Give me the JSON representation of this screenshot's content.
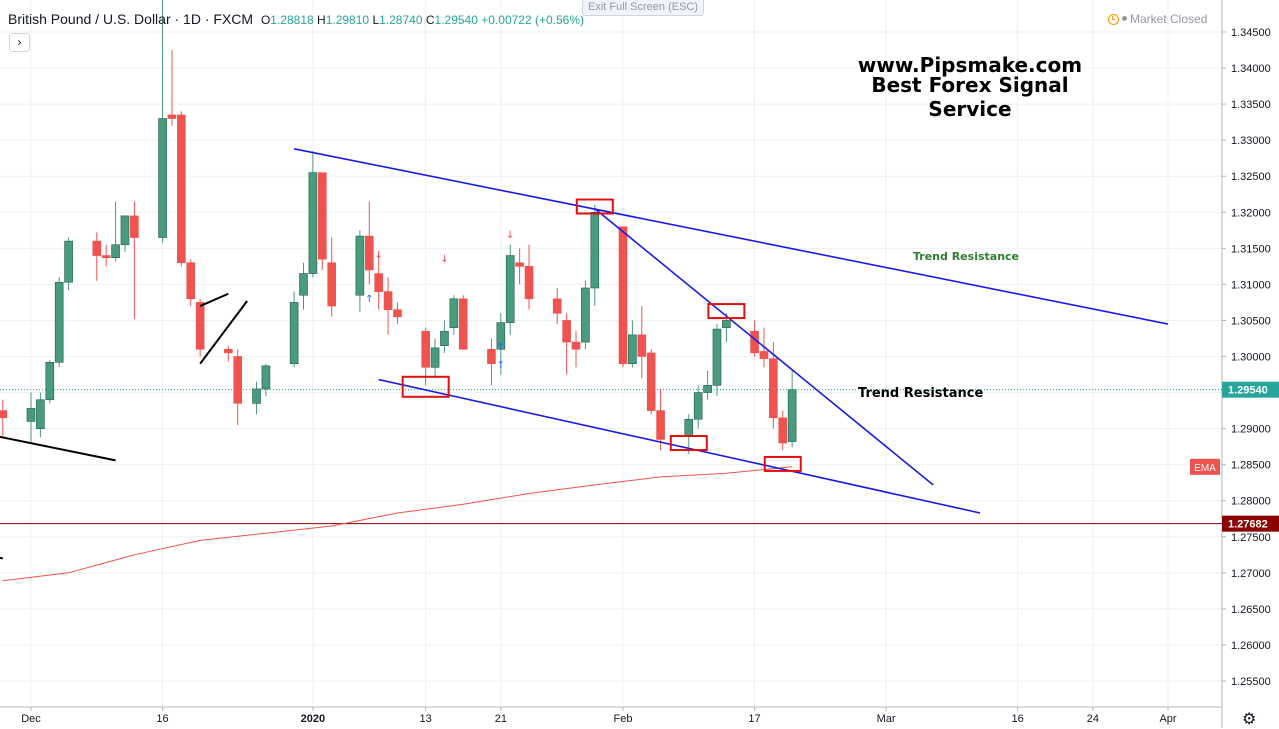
{
  "header": {
    "symbol_title": "British Pound / U.S. Dollar · 1D · FXCM",
    "open_label": "O",
    "open": "1.28818",
    "high_label": "H",
    "high": "1.29810",
    "low_label": "L",
    "low": "1.28740",
    "close_label": "C",
    "close": "1.29540",
    "change": "+0.00722 (+0.56%)"
  },
  "exit_fullscreen_label": "Exit Full Screen (ESC)",
  "market_status": "Market Closed",
  "expand_glyph": "›",
  "watermark": {
    "line1": "www.Pipsmake.com",
    "line2": "Best Forex Signal Service"
  },
  "colors": {
    "up": "#26a69a",
    "up_body": "#4a9a7e",
    "down": "#ef5350",
    "trendline": "#1a1ae6",
    "ema": "#ef5350",
    "highlight_box": "#e01010",
    "support_line": "#8b0000",
    "price_line": "#26a69a"
  },
  "chart_data": {
    "type": "candlestick",
    "title": "British Pound / U.S. Dollar · 1D · FXCM",
    "ylim": [
      1.252,
      1.3475
    ],
    "y_ticks": [
      "1.34500",
      "1.34000",
      "1.33500",
      "1.33000",
      "1.32500",
      "1.32000",
      "1.31500",
      "1.31000",
      "1.30500",
      "1.30000",
      "1.29500",
      "1.29000",
      "1.28500",
      "1.28000",
      "1.27500",
      "1.27000",
      "1.26500",
      "1.26000",
      "1.25500"
    ],
    "x_tick_labels": [
      {
        "label": "Dec",
        "date": "2019-12-02"
      },
      {
        "label": "16",
        "date": "2019-12-16"
      },
      {
        "label": "2020",
        "date": "2020-01-01"
      },
      {
        "label": "13",
        "date": "2020-01-13"
      },
      {
        "label": "21",
        "date": "2020-01-21"
      },
      {
        "label": "Feb",
        "date": "2020-02-03"
      },
      {
        "label": "17",
        "date": "2020-02-17"
      },
      {
        "label": "Mar",
        "date": "2020-03-02"
      },
      {
        "label": "16",
        "date": "2020-03-16"
      },
      {
        "label": "24",
        "date": "2020-03-24"
      },
      {
        "label": "Apr",
        "date": "2020-04-01"
      }
    ],
    "candles": [
      {
        "date": "2019-11-29",
        "o": 1.2925,
        "h": 1.294,
        "l": 1.289,
        "c": 1.2915
      },
      {
        "date": "2019-12-02",
        "o": 1.291,
        "h": 1.295,
        "l": 1.288,
        "c": 1.2928
      },
      {
        "date": "2019-12-03",
        "o": 1.29,
        "h": 1.295,
        "l": 1.2888,
        "c": 1.294
      },
      {
        "date": "2019-12-04",
        "o": 1.294,
        "h": 1.2995,
        "l": 1.2935,
        "c": 1.2992
      },
      {
        "date": "2019-12-05",
        "o": 1.2992,
        "h": 1.311,
        "l": 1.2985,
        "c": 1.3103
      },
      {
        "date": "2019-12-06",
        "o": 1.3103,
        "h": 1.3165,
        "l": 1.3092,
        "c": 1.316
      },
      {
        "date": "2019-12-09",
        "o": 1.316,
        "h": 1.3172,
        "l": 1.3105,
        "c": 1.314
      },
      {
        "date": "2019-12-10",
        "o": 1.314,
        "h": 1.3155,
        "l": 1.3125,
        "c": 1.3137
      },
      {
        "date": "2019-12-11",
        "o": 1.3137,
        "h": 1.3215,
        "l": 1.3132,
        "c": 1.3155
      },
      {
        "date": "2019-12-12",
        "o": 1.3155,
        "h": 1.3195,
        "l": 1.3145,
        "c": 1.3195
      },
      {
        "date": "2019-12-13",
        "o": 1.3195,
        "h": 1.3215,
        "l": 1.3052,
        "c": 1.3165
      },
      {
        "date": "2019-12-16",
        "o": 1.3165,
        "h": 1.3515,
        "l": 1.3158,
        "c": 1.333
      },
      {
        "date": "2019-12-17",
        "o": 1.3335,
        "h": 1.3425,
        "l": 1.332,
        "c": 1.333
      },
      {
        "date": "2019-12-18",
        "o": 1.3335,
        "h": 1.334,
        "l": 1.3125,
        "c": 1.313
      },
      {
        "date": "2019-12-19",
        "o": 1.313,
        "h": 1.3135,
        "l": 1.307,
        "c": 1.308
      },
      {
        "date": "2019-12-20",
        "o": 1.3075,
        "h": 1.308,
        "l": 1.3,
        "c": 1.301
      },
      {
        "date": "2019-12-23",
        "o": 1.301,
        "h": 1.3015,
        "l": 1.2993,
        "c": 1.3005
      },
      {
        "date": "2019-12-24",
        "o": 1.3,
        "h": 1.301,
        "l": 1.2905,
        "c": 1.2935
      },
      {
        "date": "2019-12-26",
        "o": 1.2935,
        "h": 1.2965,
        "l": 1.292,
        "c": 1.2955
      },
      {
        "date": "2019-12-27",
        "o": 1.2955,
        "h": 1.299,
        "l": 1.2945,
        "c": 1.2987
      },
      {
        "date": "2019-12-30",
        "o": 1.299,
        "h": 1.309,
        "l": 1.2985,
        "c": 1.3075
      },
      {
        "date": "2019-12-31",
        "o": 1.3085,
        "h": 1.313,
        "l": 1.3065,
        "c": 1.3115
      },
      {
        "date": "2020-01-01",
        "o": 1.3115,
        "h": 1.3285,
        "l": 1.311,
        "c": 1.3255
      },
      {
        "date": "2020-01-02",
        "o": 1.3255,
        "h": 1.3255,
        "l": 1.312,
        "c": 1.3135
      },
      {
        "date": "2020-01-03",
        "o": 1.313,
        "h": 1.3165,
        "l": 1.3055,
        "c": 1.307
      },
      {
        "date": "2020-01-06",
        "o": 1.3085,
        "h": 1.3175,
        "l": 1.3062,
        "c": 1.3167
      },
      {
        "date": "2020-01-07",
        "o": 1.3167,
        "h": 1.3215,
        "l": 1.31,
        "c": 1.312
      },
      {
        "date": "2020-01-08",
        "o": 1.3115,
        "h": 1.3145,
        "l": 1.3065,
        "c": 1.309
      },
      {
        "date": "2020-01-09",
        "o": 1.309,
        "h": 1.311,
        "l": 1.303,
        "c": 1.3065
      },
      {
        "date": "2020-01-10",
        "o": 1.3065,
        "h": 1.3075,
        "l": 1.3045,
        "c": 1.3055
      },
      {
        "date": "2020-01-13",
        "o": 1.3035,
        "h": 1.304,
        "l": 1.296,
        "c": 1.2985
      },
      {
        "date": "2020-01-14",
        "o": 1.2985,
        "h": 1.3025,
        "l": 1.297,
        "c": 1.3012
      },
      {
        "date": "2020-01-15",
        "o": 1.3015,
        "h": 1.305,
        "l": 1.3005,
        "c": 1.3035
      },
      {
        "date": "2020-01-16",
        "o": 1.304,
        "h": 1.3085,
        "l": 1.303,
        "c": 1.308
      },
      {
        "date": "2020-01-17",
        "o": 1.308,
        "h": 1.3085,
        "l": 1.301,
        "c": 1.301
      },
      {
        "date": "2020-01-20",
        "o": 1.301,
        "h": 1.3025,
        "l": 1.296,
        "c": 1.299
      },
      {
        "date": "2020-01-21",
        "o": 1.301,
        "h": 1.306,
        "l": 1.2975,
        "c": 1.3047
      },
      {
        "date": "2020-01-22",
        "o": 1.3047,
        "h": 1.3155,
        "l": 1.303,
        "c": 1.314
      },
      {
        "date": "2020-01-23",
        "o": 1.313,
        "h": 1.315,
        "l": 1.31,
        "c": 1.3125
      },
      {
        "date": "2020-01-24",
        "o": 1.3125,
        "h": 1.3155,
        "l": 1.3065,
        "c": 1.308
      },
      {
        "date": "2020-01-27",
        "o": 1.308,
        "h": 1.3095,
        "l": 1.3045,
        "c": 1.306
      },
      {
        "date": "2020-01-28",
        "o": 1.305,
        "h": 1.306,
        "l": 1.2975,
        "c": 1.302
      },
      {
        "date": "2020-01-29",
        "o": 1.302,
        "h": 1.3035,
        "l": 1.2985,
        "c": 1.301
      },
      {
        "date": "2020-01-30",
        "o": 1.302,
        "h": 1.3105,
        "l": 1.301,
        "c": 1.3095
      },
      {
        "date": "2020-01-31",
        "o": 1.3095,
        "h": 1.321,
        "l": 1.307,
        "c": 1.32
      },
      {
        "date": "2020-02-03",
        "o": 1.318,
        "h": 1.318,
        "l": 1.2985,
        "c": 1.299
      },
      {
        "date": "2020-02-04",
        "o": 1.299,
        "h": 1.305,
        "l": 1.2985,
        "c": 1.303
      },
      {
        "date": "2020-02-05",
        "o": 1.303,
        "h": 1.307,
        "l": 1.297,
        "c": 1.3
      },
      {
        "date": "2020-02-06",
        "o": 1.3005,
        "h": 1.301,
        "l": 1.292,
        "c": 1.2925
      },
      {
        "date": "2020-02-07",
        "o": 1.2925,
        "h": 1.2955,
        "l": 1.287,
        "c": 1.2885
      },
      {
        "date": "2020-02-10",
        "o": 1.289,
        "h": 1.292,
        "l": 1.2865,
        "c": 1.2913
      },
      {
        "date": "2020-02-11",
        "o": 1.2913,
        "h": 1.296,
        "l": 1.29,
        "c": 1.295
      },
      {
        "date": "2020-02-12",
        "o": 1.295,
        "h": 1.298,
        "l": 1.294,
        "c": 1.296
      },
      {
        "date": "2020-02-13",
        "o": 1.296,
        "h": 1.3045,
        "l": 1.2945,
        "c": 1.3038
      },
      {
        "date": "2020-02-14",
        "o": 1.304,
        "h": 1.306,
        "l": 1.302,
        "c": 1.305
      },
      {
        "date": "2020-02-17",
        "o": 1.3035,
        "h": 1.305,
        "l": 1.3,
        "c": 1.3005
      },
      {
        "date": "2020-02-18",
        "o": 1.3007,
        "h": 1.304,
        "l": 1.2985,
        "c": 1.2997
      },
      {
        "date": "2020-02-19",
        "o": 1.2997,
        "h": 1.302,
        "l": 1.29,
        "c": 1.2915
      },
      {
        "date": "2020-02-20",
        "o": 1.2915,
        "h": 1.2925,
        "l": 1.287,
        "c": 1.288
      },
      {
        "date": "2020-02-21",
        "o": 1.2882,
        "h": 1.2981,
        "l": 1.2874,
        "c": 1.2954
      }
    ],
    "ema": {
      "name": "EMA",
      "points": [
        {
          "date": "2019-11-29",
          "v": 1.2689
        },
        {
          "date": "2019-12-06",
          "v": 1.27
        },
        {
          "date": "2019-12-13",
          "v": 1.2725
        },
        {
          "date": "2019-12-20",
          "v": 1.2745
        },
        {
          "date": "2019-12-27",
          "v": 1.2755
        },
        {
          "date": "2020-01-03",
          "v": 1.2765
        },
        {
          "date": "2020-01-10",
          "v": 1.2783
        },
        {
          "date": "2020-01-17",
          "v": 1.2795
        },
        {
          "date": "2020-01-24",
          "v": 1.281
        },
        {
          "date": "2020-01-31",
          "v": 1.2822
        },
        {
          "date": "2020-02-07",
          "v": 1.2833
        },
        {
          "date": "2020-02-14",
          "v": 1.2838
        },
        {
          "date": "2020-02-21",
          "v": 1.2847
        }
      ],
      "label": "EMA"
    },
    "last_price": "1.29540",
    "support_price": "1.27682",
    "annotations": {
      "trend_resistance_upper_label": "Trend Resistance",
      "trend_resistance_lower_label": "Trend Resistance"
    },
    "trendlines": [
      {
        "from": {
          "date": "2019-12-30",
          "v": 1.3288
        },
        "to": {
          "date": "2020-04-01",
          "v": 1.3045
        },
        "color": "#1a1ae6"
      },
      {
        "from": {
          "date": "2020-01-08",
          "v": 1.2968
        },
        "to": {
          "date": "2020-03-12",
          "v": 1.2783
        },
        "color": "#1a1ae6"
      },
      {
        "from": {
          "date": "2020-01-31",
          "v": 1.3205
        },
        "to": {
          "date": "2020-03-07",
          "v": 1.2822
        },
        "color": "#1a1ae6"
      },
      {
        "from": {
          "date": "2019-11-27",
          "v": 1.2893
        },
        "to": {
          "date": "2019-12-11",
          "v": 1.2856
        },
        "color": "#000000"
      },
      {
        "from": {
          "date": "2019-11-27",
          "v": 1.2725
        },
        "to": {
          "date": "2019-11-29",
          "v": 1.272
        },
        "color": "#000000"
      },
      {
        "from": {
          "date": "2019-12-20",
          "v": 1.299
        },
        "to": {
          "date": "2019-12-25",
          "v": 1.3077
        },
        "color": "#000000"
      },
      {
        "from": {
          "date": "2019-12-20",
          "v": 1.307
        },
        "to": {
          "date": "2019-12-23",
          "v": 1.3087
        },
        "color": "#000000"
      }
    ],
    "highlight_boxes": [
      {
        "date": "2020-01-13",
        "v": 1.2958
      },
      {
        "date": "2020-01-31",
        "v": 1.3208
      },
      {
        "date": "2020-02-10",
        "v": 1.288
      },
      {
        "date": "2020-02-14",
        "v": 1.3063
      },
      {
        "date": "2020-02-20",
        "v": 1.2851
      }
    ],
    "arrows": [
      {
        "date": "2020-01-07",
        "dir": "up"
      },
      {
        "date": "2020-01-08",
        "dir": "down"
      },
      {
        "date": "2020-01-15",
        "dir": "down"
      },
      {
        "date": "2020-01-21",
        "dir": "up"
      },
      {
        "date": "2020-01-21",
        "dir": "up2"
      },
      {
        "date": "2020-01-22",
        "dir": "down"
      }
    ]
  }
}
